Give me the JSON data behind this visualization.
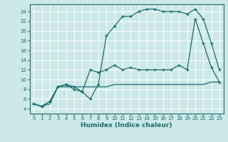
{
  "xlabel": "Humidex (Indice chaleur)",
  "background_color": "#cce8e8",
  "grid_color": "#ffffff",
  "line_color": "#1a6b6b",
  "xlim": [
    -0.5,
    23.5
  ],
  "ylim": [
    3.0,
    25.5
  ],
  "xticks": [
    0,
    1,
    2,
    3,
    4,
    5,
    6,
    7,
    8,
    9,
    10,
    11,
    12,
    13,
    14,
    15,
    16,
    17,
    18,
    19,
    20,
    21,
    22,
    23
  ],
  "yticks": [
    4,
    6,
    8,
    10,
    12,
    14,
    16,
    18,
    20,
    22,
    24
  ],
  "line_high_x": [
    0,
    1,
    2,
    3,
    4,
    5,
    6,
    7,
    8,
    9,
    10,
    11,
    12,
    13,
    14,
    15,
    16,
    17,
    18,
    19,
    20,
    21,
    22,
    23
  ],
  "line_high_y": [
    5,
    4.5,
    5.5,
    8.5,
    9,
    8,
    7.5,
    6,
    9,
    19,
    21,
    23,
    23,
    24,
    24.5,
    24.5,
    24,
    24,
    24,
    23.5,
    24.5,
    22.5,
    17.5,
    12
  ],
  "line_mid_x": [
    0,
    1,
    2,
    3,
    4,
    5,
    6,
    7,
    8,
    9,
    10,
    11,
    12,
    13,
    14,
    15,
    16,
    17,
    18,
    19,
    20,
    21,
    22,
    23
  ],
  "line_mid_y": [
    5,
    4.5,
    5.5,
    8.5,
    9,
    8.5,
    7.5,
    12,
    11.5,
    12,
    13,
    12,
    12.5,
    12,
    12,
    12,
    12,
    12,
    13,
    12,
    22.5,
    17.5,
    12.5,
    9.5
  ],
  "line_low_x": [
    0,
    1,
    2,
    3,
    4,
    5,
    6,
    7,
    8,
    9,
    10,
    11,
    12,
    13,
    14,
    15,
    16,
    17,
    18,
    19,
    20,
    21,
    22,
    23
  ],
  "line_low_y": [
    5,
    4.5,
    5,
    8.5,
    8.5,
    8.5,
    8.5,
    8.5,
    8.5,
    8.5,
    9,
    9,
    9,
    9,
    9,
    9,
    9,
    9,
    9,
    9,
    9,
    9,
    9.5,
    9.5
  ]
}
